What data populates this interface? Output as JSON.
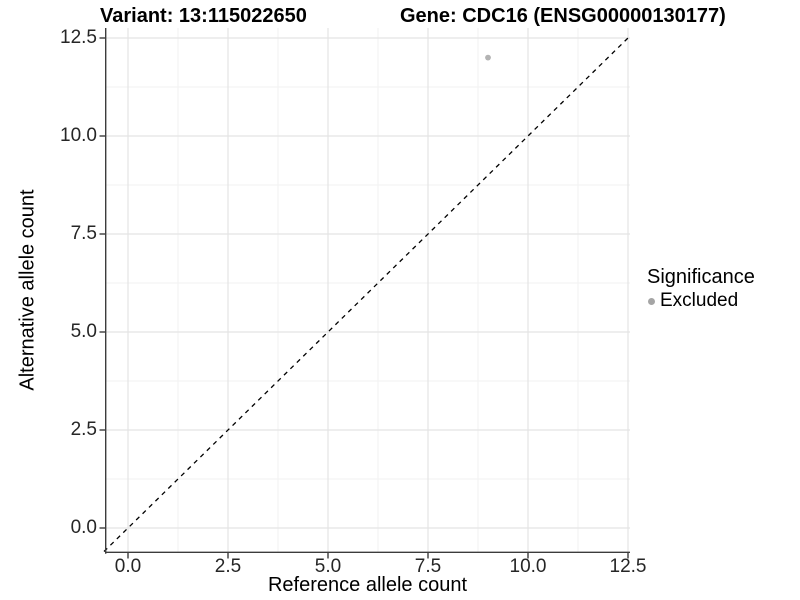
{
  "chart_data": {
    "type": "scatter",
    "title_left": "Variant: 13:115022650",
    "title_right": "Gene: CDC16 (ENSG00000130177)",
    "xlabel": "Reference allele count",
    "ylabel": "Alternative allele count",
    "x_ticks": [
      0,
      2.5,
      5,
      7.5,
      10,
      12.5
    ],
    "x_tick_labels": [
      "0.0",
      "2.5",
      "5.0",
      "7.5",
      "10.0",
      "12.5"
    ],
    "y_ticks": [
      0,
      2.5,
      5,
      7.5,
      10,
      12.5
    ],
    "y_tick_labels": [
      "0.0",
      "2.5",
      "5.0",
      "7.5",
      "10.0",
      "12.5"
    ],
    "xlim": [
      -0.6,
      12.56
    ],
    "ylim": [
      -0.64,
      12.76
    ],
    "grid": {
      "major": true,
      "minor": true,
      "minor_step": 1.25
    },
    "points": [
      {
        "x": 9,
        "y": 12,
        "significance": "Excluded"
      }
    ],
    "identity_line": {
      "slope": 1,
      "intercept": 0,
      "style": "dashed"
    },
    "legend": {
      "title": "Significance",
      "position": "right",
      "items": [
        {
          "label": "Excluded",
          "color": "#a5a5a5"
        }
      ]
    },
    "colors": {
      "background": "#ffffff",
      "point": "#b3b3b3",
      "major_grid": "#e4e4e4",
      "minor_grid": "#f2f2f2",
      "axis": "#3c3c3c",
      "identity_line": "#000000",
      "tick_text": "#262626",
      "title_text": "#000000"
    }
  }
}
